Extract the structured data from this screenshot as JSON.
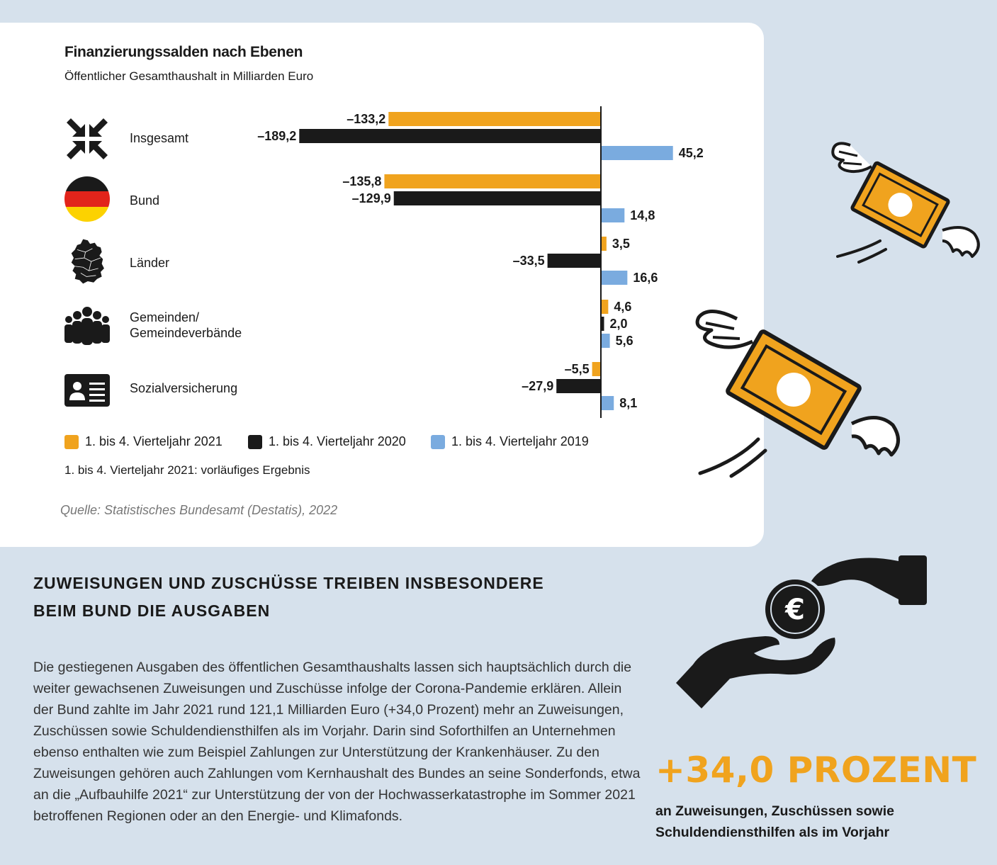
{
  "chart_data": {
    "type": "bar",
    "orientation": "horizontal",
    "title": "Finanzierungssalden nach Ebenen",
    "subtitle": "Öffentlicher Gesamthaushalt in Milliarden Euro",
    "categories": [
      "Insgesamt",
      "Bund",
      "Länder",
      "Gemeinden/\nGemeindeverbände",
      "Sozialversicherung"
    ],
    "series": [
      {
        "name": "1. bis 4. Vierteljahr 2021",
        "color": "#f0a31e",
        "values": [
          -133.2,
          -135.8,
          3.5,
          4.6,
          -5.5
        ],
        "labels": [
          "–133,2",
          "–135,8",
          "3,5",
          "4,6",
          "–5,5"
        ]
      },
      {
        "name": "1. bis 4. Vierteljahr 2020",
        "color": "#1a1a1a",
        "values": [
          -189.2,
          -129.9,
          -33.5,
          2.0,
          -27.9
        ],
        "labels": [
          "–189,2",
          "–129,9",
          "–33,5",
          "2,0",
          "–27,9"
        ]
      },
      {
        "name": "1. bis 4. Vierteljahr 2019",
        "color": "#7aabdf",
        "values": [
          45.2,
          14.8,
          16.6,
          5.6,
          8.1
        ],
        "labels": [
          "45,2",
          "14,8",
          "16,6",
          "5,6",
          "8,1"
        ]
      }
    ],
    "legend_position": "bottom"
  },
  "icons": [
    "arrows-inward-icon",
    "germany-flag-icon",
    "germany-states-map-icon",
    "people-group-icon",
    "id-card-icon"
  ],
  "note": "1. bis 4. Vierteljahr 2021: vorläufiges Ergebnis",
  "source": "Quelle: Statistisches Bundesamt (Destatis), 2022",
  "headline": "ZUWEISUNGEN UND ZUSCHÜSSE TREIBEN INSBESONDERE BEIM BUND DIE AUSGABEN",
  "body": "Die gestiegenen Ausgaben des öffentlichen Gesamthaushalts lassen sich hauptsächlich durch die weiter gewachsenen Zuweisungen und Zuschüsse infolge der Corona-Pandemie erklären. Allein der Bund zahlte im Jahr 2021 rund 121,1 Milliarden Euro (+34,0 Prozent) mehr an Zuweisungen, Zuschüssen sowie Schuldendiensthilfen als im Vorjahr. Darin sind Soforthilfen an Unternehmen ebenso enthalten wie zum Beispiel Zahlungen zur Unterstützung der Krankenhäuser. Zu den Zuweisungen gehören auch Zahlungen vom Kernhaushalt des Bundes an seine Sonderfonds, etwa an die „Aufbauhilfe 2021“ zur Unterstützung der von der Hochwasserkatastrophe im Sommer 2021 betroffenen Regionen oder an den Energie- und Klimafonds.",
  "stat": {
    "value": "+34,0 PROZENT",
    "caption": "an Zuweisungen, Zuschüssen sowie Schuldendiensthilfen als im Vorjahr"
  },
  "colors": {
    "background": "#d6e1ec",
    "accent": "#f0a31e"
  }
}
